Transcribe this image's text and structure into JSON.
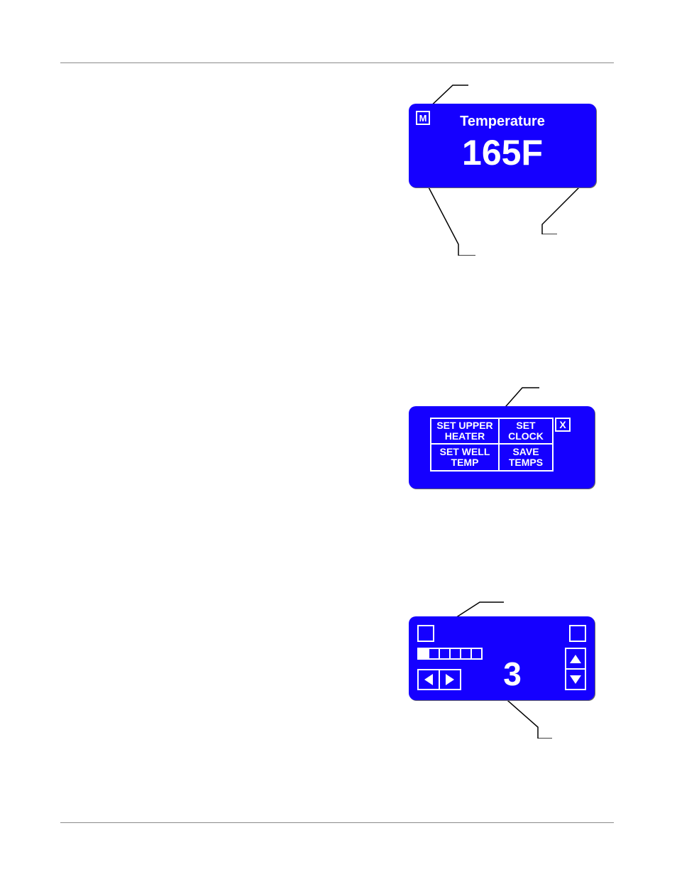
{
  "page": {
    "background_color": "#ffffff",
    "rule_color": "#8a8a8a",
    "screen_bg": "#1500ff",
    "screen_fg": "#ffffff"
  },
  "temperature_screen": {
    "mode_indicator": "M",
    "title": "Temperature",
    "value": "165F",
    "title_fontsize": 20,
    "value_fontsize": 50
  },
  "menu_screen": {
    "close_label": "X",
    "cells": [
      {
        "line1": "SET UPPER",
        "line2": "HEATER"
      },
      {
        "line1": "SET",
        "line2": "CLOCK"
      },
      {
        "line1": "SET WELL",
        "line2": "TEMP"
      },
      {
        "line1": "SAVE",
        "line2": "TEMPS"
      }
    ],
    "cell_fontsize": 14
  },
  "heater_level_screen": {
    "bar_total": 6,
    "bar_filled": 1,
    "level_value": "3",
    "level_fontsize": 46
  }
}
